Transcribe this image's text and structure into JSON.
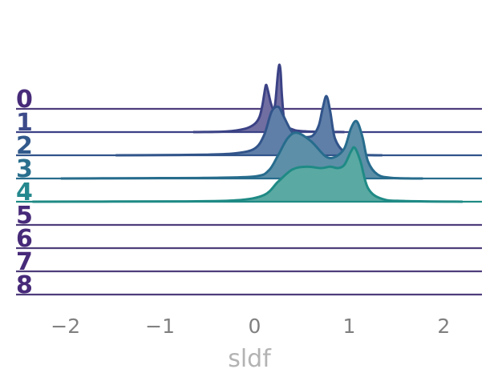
{
  "chart_data": {
    "type": "ridgeline",
    "xlabel": "sldf",
    "xlim": [
      -2.5,
      2.45
    ],
    "x_ticks": [
      {
        "value": -2,
        "label": "−2"
      },
      {
        "value": -1,
        "label": "−1"
      },
      {
        "value": 0,
        "label": "0"
      },
      {
        "value": 1,
        "label": "1"
      },
      {
        "value": 2,
        "label": "2"
      }
    ],
    "series": [
      {
        "label": "0",
        "label_color": "#472a79",
        "line_color": "#4e3d7b",
        "fill_color": "#6e63a0",
        "x": [],
        "density": []
      },
      {
        "label": "1",
        "label_color": "#3d4b8a",
        "line_color": "#3b4285",
        "fill_color": "#716ea2",
        "x": [
          -0.65,
          -0.3,
          -0.1,
          0.0,
          0.05,
          0.08,
          0.1,
          0.12,
          0.14,
          0.17,
          0.2,
          0.22,
          0.245,
          0.26,
          0.275,
          0.29,
          0.32,
          0.4,
          0.55,
          0.95
        ],
        "density": [
          0.0,
          0.01,
          0.05,
          0.12,
          0.22,
          0.38,
          0.55,
          0.7,
          0.62,
          0.44,
          0.34,
          0.45,
          0.85,
          1.0,
          0.9,
          0.52,
          0.14,
          0.04,
          0.01,
          0.0
        ]
      },
      {
        "label": "2",
        "label_color": "#31598c",
        "line_color": "#31548a",
        "fill_color": "#5f7fa8",
        "x": [
          -1.47,
          -1.0,
          -0.5,
          -0.2,
          0.0,
          0.1,
          0.18,
          0.25,
          0.3,
          0.38,
          0.45,
          0.55,
          0.62,
          0.68,
          0.72,
          0.76,
          0.8,
          0.85,
          0.95,
          1.1,
          1.35
        ],
        "density": [
          0.0,
          0.003,
          0.01,
          0.03,
          0.1,
          0.3,
          0.65,
          0.72,
          0.6,
          0.38,
          0.28,
          0.27,
          0.3,
          0.45,
          0.7,
          0.88,
          0.65,
          0.25,
          0.05,
          0.01,
          0.0
        ]
      },
      {
        "label": "3",
        "label_color": "#2a6f8e",
        "line_color": "#276c8d",
        "fill_color": "#5d8fa8",
        "x": [
          -2.05,
          -1.5,
          -1.0,
          -0.5,
          0.0,
          0.15,
          0.25,
          0.35,
          0.45,
          0.6,
          0.75,
          0.85,
          0.95,
          1.02,
          1.08,
          1.14,
          1.2,
          1.3,
          1.45,
          1.78
        ],
        "density": [
          0.0,
          0.003,
          0.006,
          0.01,
          0.03,
          0.12,
          0.35,
          0.6,
          0.68,
          0.55,
          0.33,
          0.32,
          0.45,
          0.75,
          0.85,
          0.62,
          0.25,
          0.06,
          0.01,
          0.0
        ]
      },
      {
        "label": "4",
        "label_color": "#25888e",
        "line_color": "#1f8a85",
        "fill_color": "#5aa9a2",
        "x": [
          -2.35,
          -1.5,
          -0.8,
          -0.2,
          0.1,
          0.25,
          0.4,
          0.55,
          0.7,
          0.8,
          0.88,
          0.95,
          1.02,
          1.06,
          1.12,
          1.2,
          1.35,
          1.6,
          2.2
        ],
        "density": [
          0.0,
          0.002,
          0.005,
          0.02,
          0.1,
          0.3,
          0.48,
          0.52,
          0.5,
          0.52,
          0.5,
          0.55,
          0.75,
          0.8,
          0.6,
          0.2,
          0.04,
          0.01,
          0.0
        ]
      },
      {
        "label": "5",
        "label_color": "#472a79",
        "line_color": "#4e3d7b",
        "fill_color": "#6e63a0",
        "x": [],
        "density": []
      },
      {
        "label": "6",
        "label_color": "#472a79",
        "line_color": "#4e3d7b",
        "fill_color": "#6e63a0",
        "x": [],
        "density": []
      },
      {
        "label": "7",
        "label_color": "#472a79",
        "line_color": "#4e3d7b",
        "fill_color": "#6e63a0",
        "x": [],
        "density": []
      },
      {
        "label": "8",
        "label_color": "#472a79",
        "line_color": "#4e3d7b",
        "fill_color": "#6e63a0",
        "x": [],
        "density": []
      }
    ]
  }
}
